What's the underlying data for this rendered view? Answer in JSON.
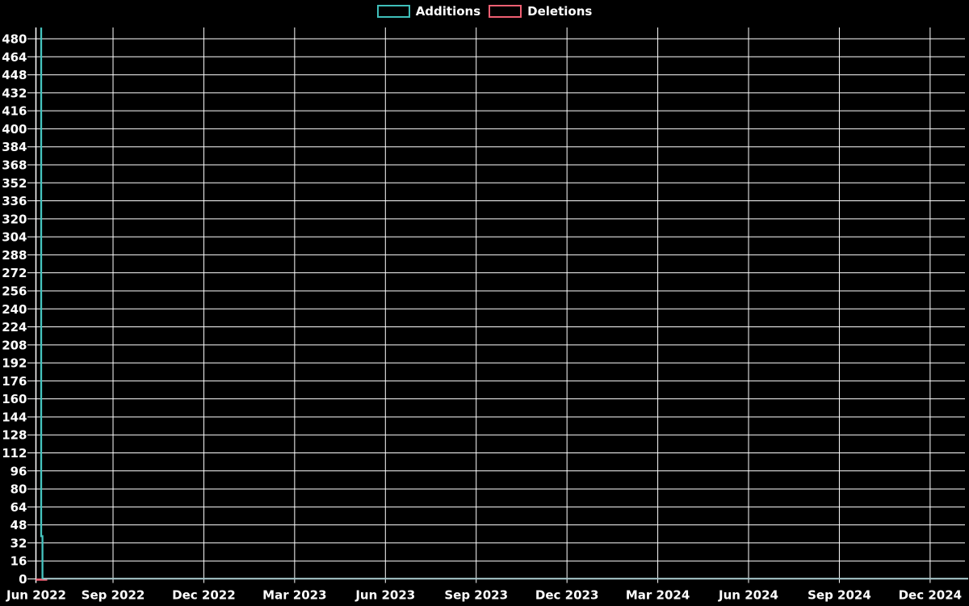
{
  "chart": {
    "legend": [
      {
        "label": "Additions",
        "color": "#3fbfba"
      },
      {
        "label": "Deletions",
        "color": "#ef5f72"
      }
    ],
    "y_axis": {
      "min": 0,
      "max": 480,
      "step": 16,
      "tick_labels": [
        "0",
        "16",
        "32",
        "48",
        "64",
        "80",
        "96",
        "112",
        "128",
        "144",
        "160",
        "176",
        "192",
        "208",
        "224",
        "240",
        "256",
        "272",
        "288",
        "304",
        "320",
        "336",
        "352",
        "368",
        "384",
        "400",
        "416",
        "432",
        "448",
        "464",
        "480"
      ]
    },
    "x_axis": {
      "tick_labels": [
        "Jun 2022",
        "Sep 2022",
        "Dec 2022",
        "Mar 2023",
        "Jun 2023",
        "Sep 2023",
        "Dec 2023",
        "Mar 2024",
        "Jun 2024",
        "Sep 2024",
        "Dec 2024"
      ]
    },
    "colors": {
      "background": "#000000",
      "grid": "#ffffff",
      "text": "#ffffff",
      "additions": "#3fbfba",
      "additions_spike": "#45c4bf",
      "additions_zero_line": "#a3c2c6",
      "deletions": "#ef5f72"
    }
  },
  "chart_data": {
    "type": "line",
    "title": "",
    "xlabel": "",
    "ylabel": "",
    "x_tick_labels": [
      "Jun 2022",
      "Sep 2022",
      "Dec 2022",
      "Mar 2023",
      "Jun 2023",
      "Sep 2023",
      "Dec 2023",
      "Mar 2024",
      "Jun 2024",
      "Sep 2024",
      "Dec 2024"
    ],
    "ylim": [
      0,
      490
    ],
    "y_tick_step": 16,
    "grid": true,
    "legend_position": "top-center",
    "series": [
      {
        "name": "Additions",
        "color": "#3fbfba",
        "points": [
          {
            "x": "Jun 2022 (start)",
            "y": 490
          },
          {
            "x": "Jun 2022 (+1 week)",
            "y": 38
          },
          {
            "x": "Jun 2022 (+2 weeks)",
            "y": 0
          },
          {
            "x": "Dec 2024 (end)",
            "y": 0
          }
        ]
      },
      {
        "name": "Deletions",
        "color": "#ef5f72",
        "points": [
          {
            "x": "Jun 2022 (start)",
            "y": 0
          },
          {
            "x": "Dec 2024 (end)",
            "y": 0
          }
        ]
      }
    ]
  }
}
